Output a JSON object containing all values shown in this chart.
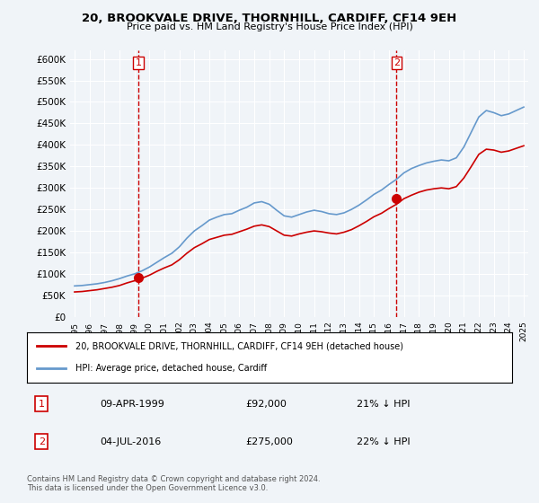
{
  "title": "20, BROOKVALE DRIVE, THORNHILL, CARDIFF, CF14 9EH",
  "subtitle": "Price paid vs. HM Land Registry's House Price Index (HPI)",
  "legend_line1": "20, BROOKVALE DRIVE, THORNHILL, CARDIFF, CF14 9EH (detached house)",
  "legend_line2": "HPI: Average price, detached house, Cardiff",
  "annotation1_label": "1",
  "annotation1_date": "09-APR-1999",
  "annotation1_price": "£92,000",
  "annotation1_hpi": "21% ↓ HPI",
  "annotation2_label": "2",
  "annotation2_date": "04-JUL-2016",
  "annotation2_price": "£275,000",
  "annotation2_hpi": "22% ↓ HPI",
  "footnote": "Contains HM Land Registry data © Crown copyright and database right 2024.\nThis data is licensed under the Open Government Licence v3.0.",
  "line_color_sold": "#cc0000",
  "line_color_hpi": "#6699cc",
  "dashed_color": "#cc0000",
  "background_color": "#f0f4f8",
  "plot_bg_color": "#f0f4f8",
  "ylim": [
    0,
    620000
  ],
  "yticks": [
    0,
    50000,
    100000,
    150000,
    200000,
    250000,
    300000,
    350000,
    400000,
    450000,
    500000,
    550000,
    600000
  ],
  "start_year": 1995,
  "end_year": 2025,
  "purchase1_year": 1999.27,
  "purchase1_value": 92000,
  "purchase2_year": 2016.5,
  "purchase2_value": 275000,
  "hpi_years": [
    1995,
    1995.5,
    1996,
    1996.5,
    1997,
    1997.5,
    1998,
    1998.5,
    1999,
    1999.5,
    2000,
    2000.5,
    2001,
    2001.5,
    2002,
    2002.5,
    2003,
    2003.5,
    2004,
    2004.5,
    2005,
    2005.5,
    2006,
    2006.5,
    2007,
    2007.5,
    2008,
    2008.5,
    2009,
    2009.5,
    2010,
    2010.5,
    2011,
    2011.5,
    2012,
    2012.5,
    2013,
    2013.5,
    2014,
    2014.5,
    2015,
    2015.5,
    2016,
    2016.5,
    2017,
    2017.5,
    2018,
    2018.5,
    2019,
    2019.5,
    2020,
    2020.5,
    2021,
    2021.5,
    2022,
    2022.5,
    2023,
    2023.5,
    2024,
    2024.5,
    2025
  ],
  "hpi_values": [
    72000,
    73000,
    75000,
    77000,
    80000,
    84000,
    89000,
    95000,
    100000,
    107000,
    116000,
    127000,
    138000,
    148000,
    163000,
    183000,
    200000,
    212000,
    225000,
    232000,
    238000,
    240000,
    248000,
    255000,
    265000,
    268000,
    262000,
    248000,
    235000,
    232000,
    238000,
    244000,
    248000,
    245000,
    240000,
    238000,
    242000,
    250000,
    260000,
    272000,
    285000,
    295000,
    308000,
    320000,
    335000,
    345000,
    352000,
    358000,
    362000,
    365000,
    363000,
    370000,
    395000,
    430000,
    465000,
    480000,
    475000,
    468000,
    472000,
    480000,
    488000
  ],
  "sold_years": [
    1995,
    1995.5,
    1996,
    1996.5,
    1997,
    1997.5,
    1998,
    1998.5,
    1999,
    1999.5,
    2000,
    2000.5,
    2001,
    2001.5,
    2002,
    2002.5,
    2003,
    2003.5,
    2004,
    2004.5,
    2005,
    2005.5,
    2006,
    2006.5,
    2007,
    2007.5,
    2008,
    2008.5,
    2009,
    2009.5,
    2010,
    2010.5,
    2011,
    2011.5,
    2012,
    2012.5,
    2013,
    2013.5,
    2014,
    2014.5,
    2015,
    2015.5,
    2016,
    2016.5,
    2017,
    2017.5,
    2018,
    2018.5,
    2019,
    2019.5,
    2020,
    2020.5,
    2021,
    2021.5,
    2022,
    2022.5,
    2023,
    2023.5,
    2024,
    2024.5,
    2025
  ],
  "sold_values": [
    58000,
    59000,
    61000,
    63000,
    66000,
    69000,
    73000,
    79000,
    84000,
    90000,
    97000,
    106000,
    114000,
    121000,
    133000,
    148000,
    161000,
    170000,
    180000,
    185000,
    190000,
    192000,
    198000,
    204000,
    211000,
    214000,
    210000,
    200000,
    190000,
    188000,
    193000,
    197000,
    200000,
    198000,
    195000,
    193000,
    197000,
    203000,
    212000,
    222000,
    233000,
    241000,
    252000,
    262000,
    275000,
    283000,
    290000,
    295000,
    298000,
    300000,
    298000,
    303000,
    323000,
    350000,
    378000,
    390000,
    388000,
    383000,
    386000,
    392000,
    398000
  ]
}
